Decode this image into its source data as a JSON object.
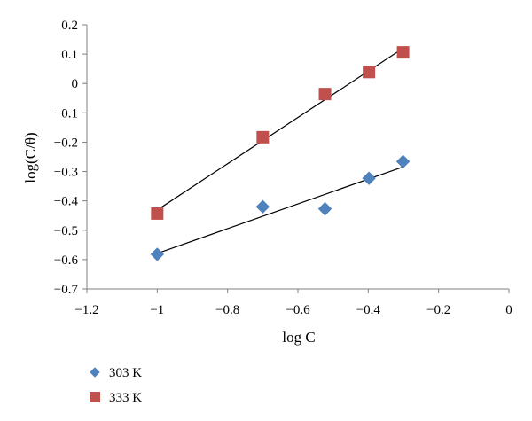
{
  "chart_data": {
    "type": "scatter",
    "xlabel": "log C",
    "ylabel": "log(C/θ)",
    "xlim": [
      -1.2,
      0
    ],
    "ylim": [
      -0.7,
      0.2
    ],
    "x_ticks": [
      -1.2,
      -1,
      -0.8,
      -0.6,
      -0.4,
      -0.2,
      0
    ],
    "x_tick_labels": [
      "−1.2",
      "−1",
      "−0.8",
      "−0.6",
      "−0.4",
      "−0.2",
      "0"
    ],
    "y_ticks": [
      0.2,
      0.1,
      0,
      -0.1,
      -0.2,
      -0.3,
      -0.4,
      -0.5,
      -0.6,
      -0.7
    ],
    "y_tick_labels": [
      "0.2",
      "0.1",
      "0",
      "−0.1",
      "−0.2",
      "−0.3",
      "−0.4",
      "−0.5",
      "−0.6",
      "−0.7"
    ],
    "grid": false,
    "legend_position": "bottom-left",
    "series": [
      {
        "name": "303 K",
        "marker": "diamond",
        "color": "#4f81bd",
        "x": [
          -1.0,
          -0.7,
          -0.523,
          -0.398,
          -0.301
        ],
        "y": [
          -0.582,
          -0.42,
          -0.427,
          -0.323,
          -0.266
        ],
        "trendline": true
      },
      {
        "name": "333 K",
        "marker": "square",
        "color": "#c0504d",
        "x": [
          -1.0,
          -0.7,
          -0.523,
          -0.398,
          -0.301
        ],
        "y": [
          -0.443,
          -0.183,
          -0.036,
          0.039,
          0.106
        ],
        "trendline": true
      }
    ]
  }
}
